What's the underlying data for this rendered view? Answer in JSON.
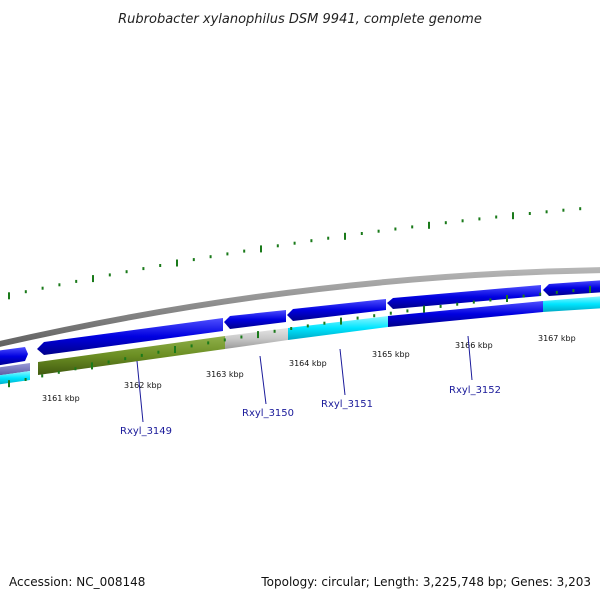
{
  "title": "Rubrobacter xylanophilus DSM 9941, complete genome",
  "footer": {
    "accession": "Accession: NC_008148",
    "summary": "Topology: circular; Length: 3,225,748 bp; Genes: 3,203"
  },
  "colors": {
    "backbone": "#8a8a8a",
    "cds": "#0000e0",
    "cyan_track": "#00e5ff",
    "olive_track": "#6b8e23",
    "grey_track": "#c8c8c8",
    "tick": "#1a7a1a",
    "gene_label": "#1a1a9a"
  },
  "kbp_ticks": [
    {
      "label": "3161 kbp"
    },
    {
      "label": "3162 kbp"
    },
    {
      "label": "3163 kbp"
    },
    {
      "label": "3164 kbp"
    },
    {
      "label": "3165 kbp"
    },
    {
      "label": "3166 kbp"
    },
    {
      "label": "3167 kbp"
    }
  ],
  "gene_labels": [
    {
      "label": "Rxyl_3149"
    },
    {
      "label": "Rxyl_3150"
    },
    {
      "label": "Rxyl_3151"
    },
    {
      "label": "Rxyl_3152"
    }
  ]
}
